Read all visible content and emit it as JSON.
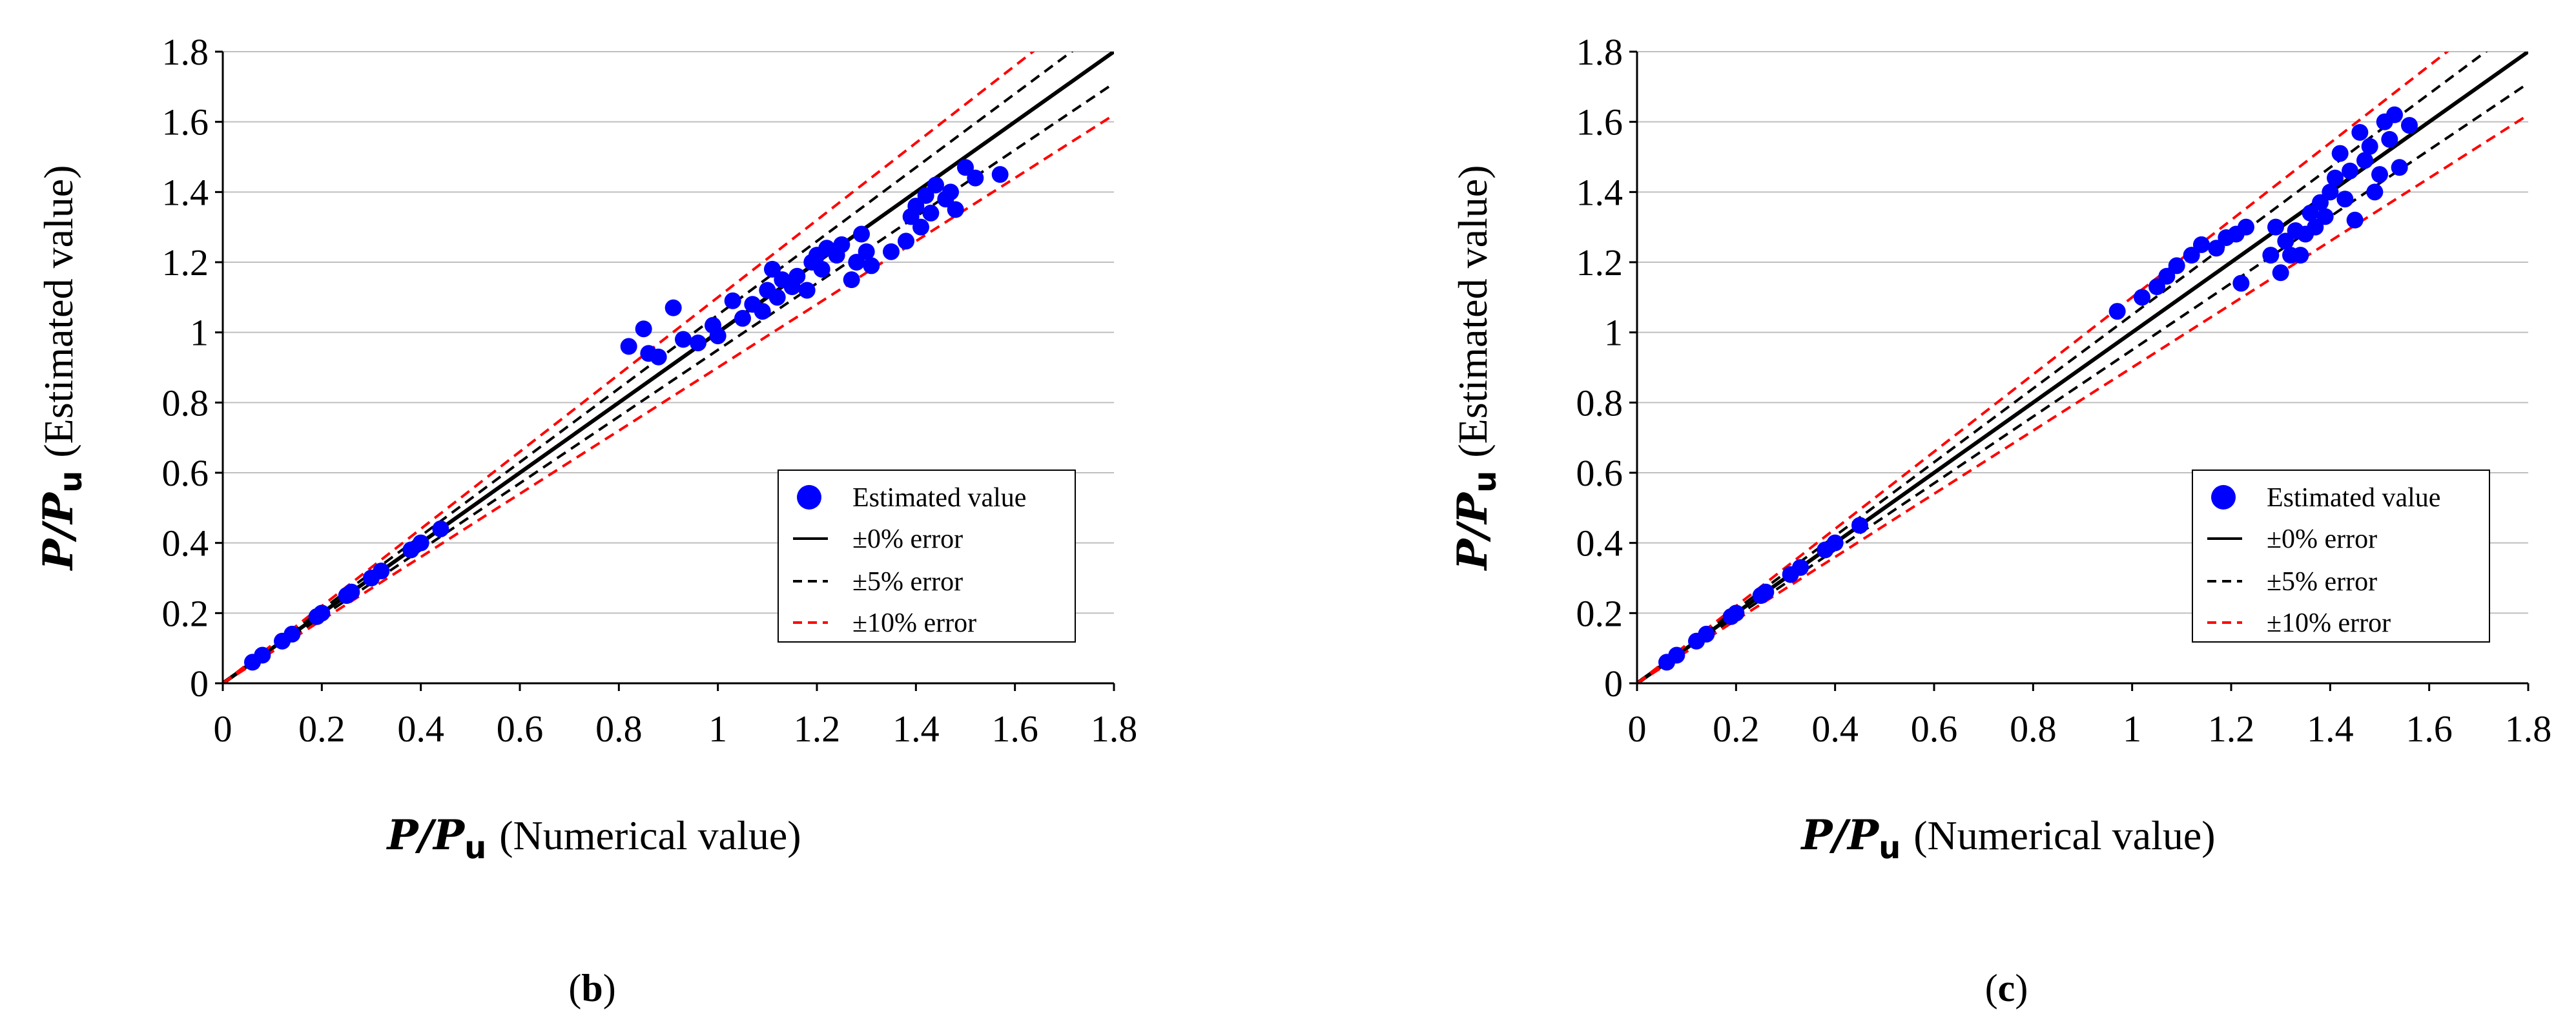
{
  "chart_data": [
    {
      "type": "scatter",
      "panel_label": {
        "open": "(",
        "letter": "b",
        "close": ")"
      },
      "xlabel": {
        "p": "P",
        "slash": "/",
        "pu": "P",
        "sub": "u",
        "text": "(Numerical value)"
      },
      "ylabel": {
        "p": "P",
        "slash": "/",
        "pu": "P",
        "sub": "u",
        "text": "(Estimated value)"
      },
      "xlim": [
        0,
        1.8
      ],
      "ylim": [
        0,
        1.8
      ],
      "xticks": [
        "0",
        "0.2",
        "0.4",
        "0.6",
        "0.8",
        "1",
        "1.2",
        "1.4",
        "1.6",
        "1.8"
      ],
      "yticks": [
        "0",
        "0.2",
        "0.4",
        "0.6",
        "0.8",
        "1",
        "1.2",
        "1.4",
        "1.6",
        "1.8"
      ],
      "legend": [
        "Estimated value",
        "±0% error",
        "±5% error",
        "±10% error"
      ],
      "lines": [
        {
          "name": "±0% error",
          "slope": 1.0,
          "style": "solid",
          "color": "#000000"
        },
        {
          "name": "+5% error",
          "slope": 1.05,
          "style": "dashed",
          "color": "#000000"
        },
        {
          "name": "-5% error",
          "slope": 0.95,
          "style": "dashed",
          "color": "#000000"
        },
        {
          "name": "+10% error",
          "slope": 1.1,
          "style": "dashed",
          "color": "#ff0000"
        },
        {
          "name": "-10% error",
          "slope": 0.9,
          "style": "dashed",
          "color": "#ff0000"
        }
      ],
      "marker_color": "#0000ff",
      "points": [
        [
          0.06,
          0.06
        ],
        [
          0.08,
          0.08
        ],
        [
          0.12,
          0.12
        ],
        [
          0.14,
          0.14
        ],
        [
          0.19,
          0.19
        ],
        [
          0.2,
          0.2
        ],
        [
          0.25,
          0.25
        ],
        [
          0.26,
          0.26
        ],
        [
          0.3,
          0.3
        ],
        [
          0.32,
          0.32
        ],
        [
          0.38,
          0.38
        ],
        [
          0.4,
          0.4
        ],
        [
          0.44,
          0.44
        ],
        [
          0.82,
          0.96
        ],
        [
          0.85,
          1.01
        ],
        [
          0.86,
          0.94
        ],
        [
          0.88,
          0.93
        ],
        [
          0.91,
          1.07
        ],
        [
          0.93,
          0.98
        ],
        [
          0.96,
          0.97
        ],
        [
          0.99,
          1.02
        ],
        [
          1.0,
          0.99
        ],
        [
          1.03,
          1.09
        ],
        [
          1.05,
          1.04
        ],
        [
          1.07,
          1.08
        ],
        [
          1.09,
          1.06
        ],
        [
          1.1,
          1.12
        ],
        [
          1.11,
          1.18
        ],
        [
          1.12,
          1.1
        ],
        [
          1.13,
          1.15
        ],
        [
          1.15,
          1.13
        ],
        [
          1.16,
          1.16
        ],
        [
          1.18,
          1.12
        ],
        [
          1.19,
          1.2
        ],
        [
          1.2,
          1.22
        ],
        [
          1.21,
          1.18
        ],
        [
          1.22,
          1.24
        ],
        [
          1.24,
          1.22
        ],
        [
          1.25,
          1.25
        ],
        [
          1.27,
          1.15
        ],
        [
          1.28,
          1.2
        ],
        [
          1.29,
          1.28
        ],
        [
          1.3,
          1.23
        ],
        [
          1.31,
          1.19
        ],
        [
          1.35,
          1.23
        ],
        [
          1.38,
          1.26
        ],
        [
          1.39,
          1.33
        ],
        [
          1.4,
          1.36
        ],
        [
          1.41,
          1.3
        ],
        [
          1.42,
          1.39
        ],
        [
          1.43,
          1.34
        ],
        [
          1.44,
          1.42
        ],
        [
          1.46,
          1.38
        ],
        [
          1.47,
          1.4
        ],
        [
          1.48,
          1.35
        ],
        [
          1.5,
          1.47
        ],
        [
          1.52,
          1.44
        ],
        [
          1.57,
          1.45
        ]
      ]
    },
    {
      "type": "scatter",
      "panel_label": {
        "open": "(",
        "letter": "c",
        "close": ")"
      },
      "xlabel": {
        "p": "P",
        "slash": "/",
        "pu": "P",
        "sub": "u",
        "text": "(Numerical value)"
      },
      "ylabel": {
        "p": "P",
        "slash": "/",
        "pu": "P",
        "sub": "u",
        "text": "(Estimated value)"
      },
      "xlim": [
        0,
        1.8
      ],
      "ylim": [
        0,
        1.8
      ],
      "xticks": [
        "0",
        "0.2",
        "0.4",
        "0.6",
        "0.8",
        "1",
        "1.2",
        "1.4",
        "1.6",
        "1.8"
      ],
      "yticks": [
        "0",
        "0.2",
        "0.4",
        "0.6",
        "0.8",
        "1",
        "1.2",
        "1.4",
        "1.6",
        "1.8"
      ],
      "legend": [
        "Estimated value",
        "±0% error",
        "±5% error",
        "±10% error"
      ],
      "lines": [
        {
          "name": "±0% error",
          "slope": 1.0,
          "style": "solid",
          "color": "#000000"
        },
        {
          "name": "+5% error",
          "slope": 1.05,
          "style": "dashed",
          "color": "#000000"
        },
        {
          "name": "-5% error",
          "slope": 0.95,
          "style": "dashed",
          "color": "#000000"
        },
        {
          "name": "+10% error",
          "slope": 1.1,
          "style": "dashed",
          "color": "#ff0000"
        },
        {
          "name": "-10% error",
          "slope": 0.9,
          "style": "dashed",
          "color": "#ff0000"
        }
      ],
      "marker_color": "#0000ff",
      "points": [
        [
          0.06,
          0.06
        ],
        [
          0.08,
          0.08
        ],
        [
          0.12,
          0.12
        ],
        [
          0.14,
          0.14
        ],
        [
          0.19,
          0.19
        ],
        [
          0.2,
          0.2
        ],
        [
          0.25,
          0.25
        ],
        [
          0.26,
          0.26
        ],
        [
          0.31,
          0.31
        ],
        [
          0.33,
          0.33
        ],
        [
          0.38,
          0.38
        ],
        [
          0.4,
          0.4
        ],
        [
          0.45,
          0.45
        ],
        [
          0.97,
          1.06
        ],
        [
          1.02,
          1.1
        ],
        [
          1.05,
          1.13
        ],
        [
          1.07,
          1.16
        ],
        [
          1.09,
          1.19
        ],
        [
          1.12,
          1.22
        ],
        [
          1.14,
          1.25
        ],
        [
          1.17,
          1.24
        ],
        [
          1.19,
          1.27
        ],
        [
          1.21,
          1.28
        ],
        [
          1.22,
          1.14
        ],
        [
          1.23,
          1.3
        ],
        [
          1.28,
          1.22
        ],
        [
          1.29,
          1.3
        ],
        [
          1.3,
          1.17
        ],
        [
          1.31,
          1.26
        ],
        [
          1.32,
          1.22
        ],
        [
          1.33,
          1.29
        ],
        [
          1.34,
          1.22
        ],
        [
          1.35,
          1.28
        ],
        [
          1.36,
          1.34
        ],
        [
          1.37,
          1.3
        ],
        [
          1.38,
          1.37
        ],
        [
          1.39,
          1.33
        ],
        [
          1.4,
          1.4
        ],
        [
          1.41,
          1.44
        ],
        [
          1.42,
          1.51
        ],
        [
          1.43,
          1.38
        ],
        [
          1.44,
          1.46
        ],
        [
          1.45,
          1.32
        ],
        [
          1.46,
          1.57
        ],
        [
          1.47,
          1.49
        ],
        [
          1.48,
          1.53
        ],
        [
          1.49,
          1.4
        ],
        [
          1.5,
          1.45
        ],
        [
          1.51,
          1.6
        ],
        [
          1.52,
          1.55
        ],
        [
          1.53,
          1.62
        ],
        [
          1.54,
          1.47
        ],
        [
          1.56,
          1.59
        ]
      ]
    }
  ]
}
